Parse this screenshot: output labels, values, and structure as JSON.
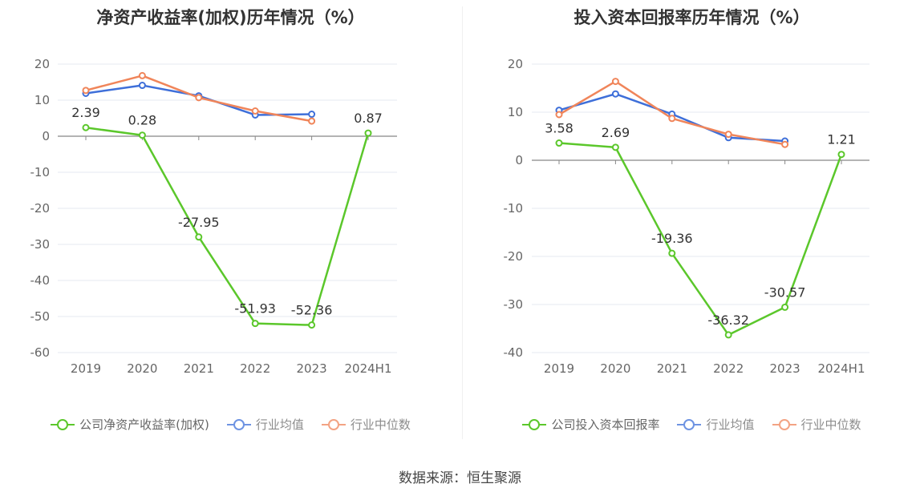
{
  "chart_data": [
    {
      "type": "line",
      "title": "净资产收益率(加权)历年情况（%）",
      "categories": [
        "2019",
        "2020",
        "2021",
        "2022",
        "2023",
        "2024H1"
      ],
      "ylim": [
        -60,
        20
      ],
      "yticks": [
        20,
        10,
        0,
        -10,
        -20,
        -30,
        -40,
        -50,
        -60
      ],
      "grid": true,
      "legend_position": "bottom",
      "series": [
        {
          "name": "公司净资产收益率(加权)",
          "color": "#5bc72b",
          "values": [
            2.39,
            0.28,
            -27.95,
            -51.93,
            -52.36,
            0.87
          ],
          "labels": [
            "2.39",
            "0.28",
            "-27.95",
            "-51.93",
            "-52.36",
            "0.87"
          ]
        },
        {
          "name": "行业均值",
          "color": "#3e6fd9",
          "values": [
            11.9,
            14.1,
            11.2,
            5.9,
            6.1,
            null
          ]
        },
        {
          "name": "行业中位数",
          "color": "#f0855a",
          "values": [
            12.7,
            16.8,
            10.7,
            7.0,
            4.2,
            null
          ]
        }
      ]
    },
    {
      "type": "line",
      "title": "投入资本回报率历年情况（%）",
      "categories": [
        "2019",
        "2020",
        "2021",
        "2022",
        "2023",
        "2024H1"
      ],
      "ylim": [
        -40,
        20
      ],
      "yticks": [
        20,
        10,
        0,
        -10,
        -20,
        -30,
        -40
      ],
      "grid": true,
      "legend_position": "bottom",
      "series": [
        {
          "name": "公司投入资本回报率",
          "color": "#5bc72b",
          "values": [
            3.58,
            2.69,
            -19.36,
            -36.32,
            -30.57,
            1.21
          ],
          "labels": [
            "3.58",
            "2.69",
            "-19.36",
            "-36.32",
            "-30.57",
            "1.21"
          ]
        },
        {
          "name": "行业均值",
          "color": "#3e6fd9",
          "values": [
            10.4,
            13.8,
            9.6,
            4.7,
            4.0,
            null
          ]
        },
        {
          "name": "行业中位数",
          "color": "#f0855a",
          "values": [
            9.5,
            16.4,
            8.7,
            5.4,
            3.3,
            null
          ]
        }
      ]
    }
  ],
  "source": "数据来源：恒生聚源"
}
